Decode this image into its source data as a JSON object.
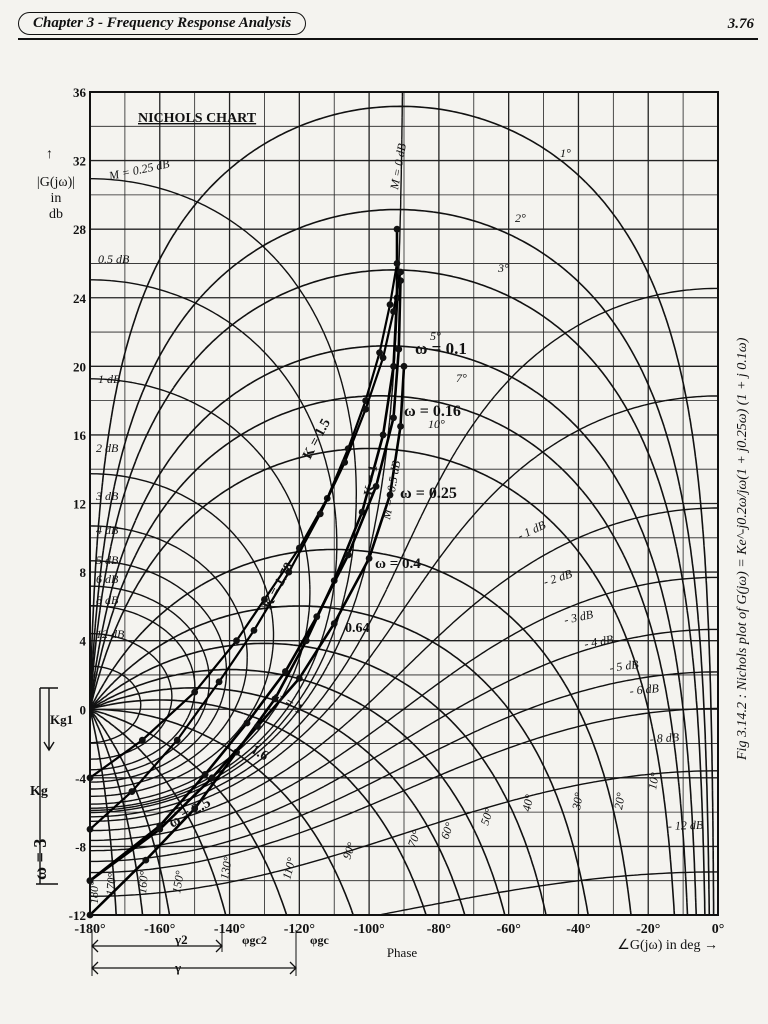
{
  "header": {
    "chapter_title": "Chapter 3 - Frequency Response Analysis",
    "page_number": "3.76"
  },
  "chart_data": {
    "type": "line",
    "title": "NICHOLS CHART",
    "ylabel": "|G(jω)| in db",
    "xlabel": "∠G(jω) in deg →",
    "xlabel_secondary": "Phase",
    "caption": "Fig 3.14.2 : Nichols plot of G(jω) = Ke^-j0.2ω/jω(1 + j0.25ω) (1 + j 0.1ω)",
    "xlim": [
      -180,
      0
    ],
    "ylim": [
      -12,
      36
    ],
    "x_ticks": [
      -180,
      -160,
      -140,
      -120,
      -100,
      -80,
      -60,
      -40,
      -20,
      0
    ],
    "x_tick_labels": [
      "-180°",
      "-160°",
      "-140°",
      "-120°",
      "-100°",
      "-80°",
      "-60°",
      "-40°",
      "-20°",
      "0°"
    ],
    "y_ticks": [
      -12,
      -8,
      -4,
      0,
      4,
      8,
      12,
      16,
      20,
      24,
      28,
      32,
      36
    ],
    "y_tick_labels": [
      "-12",
      "-8",
      "-4",
      "0",
      "4",
      "8",
      "12",
      "16",
      "20",
      "24",
      "28",
      "32",
      "36"
    ],
    "grid": true,
    "m_circle_labels": [
      "M = 0.25 dB",
      "0.5 dB",
      "1 dB",
      "2 dB",
      "3 dB",
      "4 dB",
      "5 dB",
      "6 dB",
      "8 dB",
      "12 dB",
      "M = 0 dB",
      "M = -0.5 dB",
      "- 1 dB",
      "- 2 dB",
      "- 3 dB",
      "- 4 dB",
      "- 5 dB",
      "- 6 dB",
      "- 8 dB",
      "- 12 dB"
    ],
    "n_contour_labels": [
      "1°",
      "2°",
      "3°",
      "5°",
      "7°",
      "10°",
      "10°",
      "20°",
      "30°",
      "40°",
      "50°",
      "60°",
      "70°",
      "90°",
      "110°",
      "130°",
      "150°",
      "160°",
      "170°",
      "180°"
    ],
    "frequency_labels": [
      "ω = 0.1",
      "ω = 0.16",
      "ω = 0.25",
      "ω = 0.4",
      "0.64",
      "ω = 1",
      "1.6",
      "ω = 2.5"
    ],
    "series": [
      {
        "name": "K = 1",
        "x": [
          -92,
          -92,
          -93,
          -96,
          -102,
          -110,
          -118,
          -127,
          -138,
          -150,
          -164,
          -180
        ],
        "y": [
          28,
          24,
          20,
          16,
          11.5,
          7.5,
          4,
          0.6,
          -2.5,
          -5.8,
          -8.8,
          -12
        ]
      },
      {
        "name": "K = 1.5",
        "x": [
          -91,
          -91.5,
          -93,
          -98,
          -106,
          -115,
          -124,
          -135,
          -147,
          -160,
          -180
        ],
        "y": [
          25,
          21,
          17,
          13,
          9,
          5.4,
          2.2,
          -0.8,
          -3.8,
          -6.8,
          -10
        ]
      },
      {
        "name": "K = 1.78",
        "x": [
          -90,
          -91,
          -94,
          -100,
          -110,
          -120,
          -132,
          -145,
          -160,
          -180
        ],
        "y": [
          20,
          16.5,
          12.5,
          8.8,
          5,
          1.8,
          -1,
          -4,
          -7,
          -10
        ]
      }
    ],
    "secondary_curves": [
      {
        "x": [
          -180,
          -165,
          -150,
          -138,
          -130,
          -120,
          -112,
          -106,
          -101,
          -97,
          -94,
          -92
        ],
        "y": [
          -4,
          -1.8,
          1,
          4,
          6.4,
          9.4,
          12.3,
          15.2,
          18,
          20.8,
          23.6,
          26
        ]
      },
      {
        "x": [
          -180,
          -168,
          -155,
          -143,
          -133,
          -123,
          -114,
          -107,
          -101,
          -96,
          -93,
          -91
        ],
        "y": [
          -7,
          -4.8,
          -1.8,
          1.6,
          4.6,
          8,
          11.4,
          14.4,
          17.5,
          20.5,
          23.2,
          25.5
        ]
      }
    ],
    "annotations": [
      "K = 1.5",
      "K = 1",
      "K = 1.78",
      "Kg1",
      "Kg",
      "ω = 3",
      "γ2",
      "γ",
      "φgc2",
      "φgc"
    ]
  }
}
